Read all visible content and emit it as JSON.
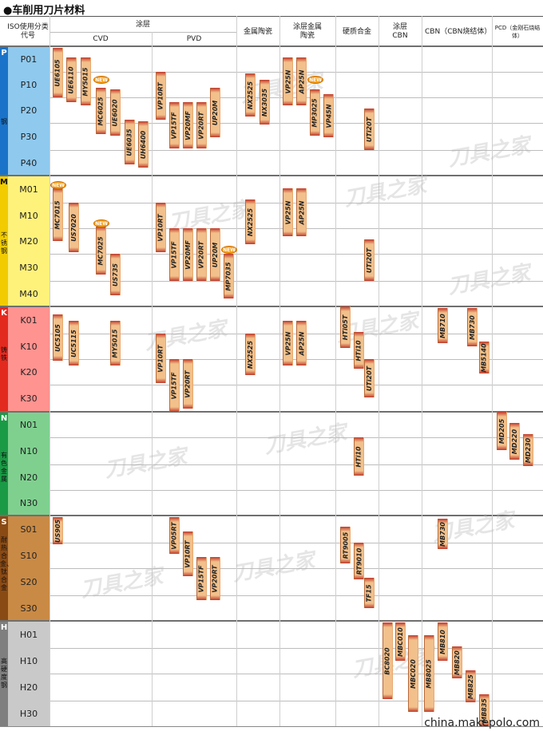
{
  "title": "●车削用刀片材料",
  "header": {
    "iso": "ISO使用分类代号",
    "coating": "涂层",
    "cvd": "CVD",
    "pvd": "PVD",
    "cermet": "金属陶瓷",
    "coated_cermet": "涂层金属陶瓷",
    "carbide": "硬质合金",
    "coated_cbn": "涂层CBN",
    "cbn": "CBN（CBN烧结体）",
    "pcd": "PCD（金刚石烧结体）"
  },
  "groups": [
    {
      "letter": "P",
      "name": "钢",
      "color": "#1a73c8",
      "band": "#8fc9ee",
      "codes": [
        "P01",
        "P10",
        "P20",
        "P30",
        "P40"
      ]
    },
    {
      "letter": "M",
      "name": "不锈钢",
      "color": "#f2cc00",
      "band": "#fff27a",
      "codes": [
        "M01",
        "M10",
        "M20",
        "M30",
        "M40"
      ]
    },
    {
      "letter": "K",
      "name": "铸铁",
      "color": "#e32a1f",
      "band": "#ff9390",
      "codes": [
        "K01",
        "K10",
        "K20",
        "K30"
      ]
    },
    {
      "letter": "N",
      "name": "有色金属",
      "color": "#1b9a45",
      "band": "#7fd08f",
      "codes": [
        "N01",
        "N10",
        "N20",
        "N30"
      ]
    },
    {
      "letter": "S",
      "name": "耐热合金、钛合金",
      "color": "#8a4a14",
      "band": "#c98a45",
      "codes": [
        "S01",
        "S10",
        "S20",
        "S30"
      ]
    },
    {
      "letter": "H",
      "name": "高硬度钢",
      "color": "#7f7f7f",
      "band": "#c9c9c9",
      "codes": [
        "H01",
        "H10",
        "H20",
        "H30"
      ]
    }
  ],
  "grades": {
    "P": [
      "UE6105",
      "UE6110",
      "MY5015",
      "MC6025",
      "UE6020",
      "UE6035",
      "UH6400",
      "VP10RT",
      "VP15TF",
      "VP20MF",
      "VP20RT",
      "UP20M",
      "NX2525",
      "NX3035",
      "VP25N",
      "AP25N",
      "MP3025",
      "VP45N",
      "UTi20T"
    ],
    "M": [
      "MC7015",
      "US7020",
      "MC7025",
      "US735",
      "VP10RT",
      "VP15TF",
      "VP20MF",
      "VP20RT",
      "UP20M",
      "MP7035",
      "NX2525",
      "VP25N",
      "AP25N",
      "UTi20T"
    ],
    "K": [
      "UC5105",
      "UC5115",
      "MY5015",
      "VP10RT",
      "VP15TF",
      "VP20RT",
      "NX2525",
      "VP25N",
      "AP25N",
      "HTi05T",
      "HTi10",
      "UTi20T",
      "MB710",
      "MB730",
      "MB5140"
    ],
    "N": [
      "HTi10",
      "MD205",
      "MD220",
      "MD230"
    ],
    "S": [
      "US905",
      "VP05RT",
      "VP10RT",
      "VP15TF",
      "VP20RT",
      "RT9005",
      "RT9010",
      "TF15",
      "MB730"
    ],
    "H": [
      "BC8020",
      "MBC010",
      "MBC020",
      "MB8025",
      "MB810",
      "MB820",
      "MB825",
      "MB835"
    ]
  },
  "new_badge": "NEW",
  "watermark": "刀具之家",
  "credit": "china.makepolo.com"
}
